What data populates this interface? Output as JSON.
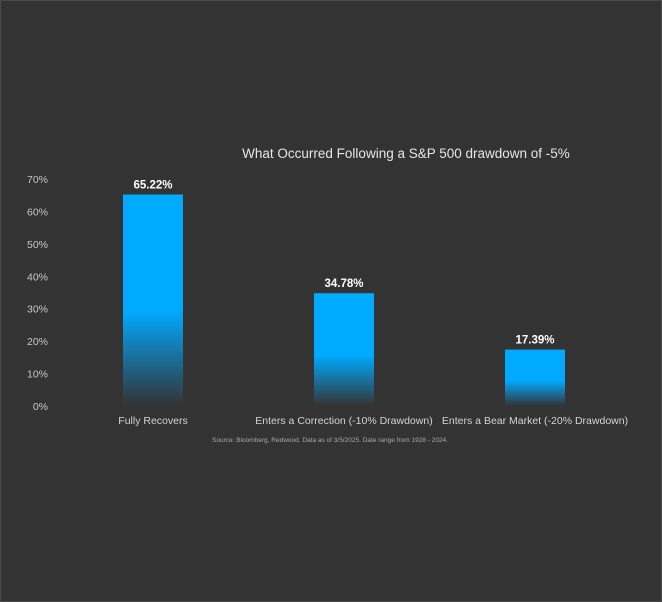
{
  "chart_data": {
    "type": "bar",
    "title": "What Occurred Following a S&P 500 drawdown of -5%",
    "categories": [
      "Fully Recovers",
      "Enters a Correction (-10% Drawdown)",
      "Enters a Bear Market (-20% Drawdown)"
    ],
    "values": [
      65.22,
      34.78,
      17.39
    ],
    "data_labels": [
      "65.22%",
      "34.78%",
      "17.39%"
    ],
    "ylim": [
      0,
      70
    ],
    "yticks": [
      0,
      10,
      20,
      30,
      40,
      50,
      60,
      70
    ],
    "ytick_labels": [
      "0%",
      "10%",
      "20%",
      "30%",
      "40%",
      "50%",
      "60%",
      "70%"
    ],
    "xlabel": "",
    "ylabel": "",
    "grid": false,
    "legend": "none",
    "source": "Source: Bloomberg, Redwood. Data as of 3/5/2025. Date range from 1928 - 2024.",
    "colors": {
      "bar": "#00aaff",
      "bar_fade": "#333333",
      "background": "#333333"
    }
  }
}
